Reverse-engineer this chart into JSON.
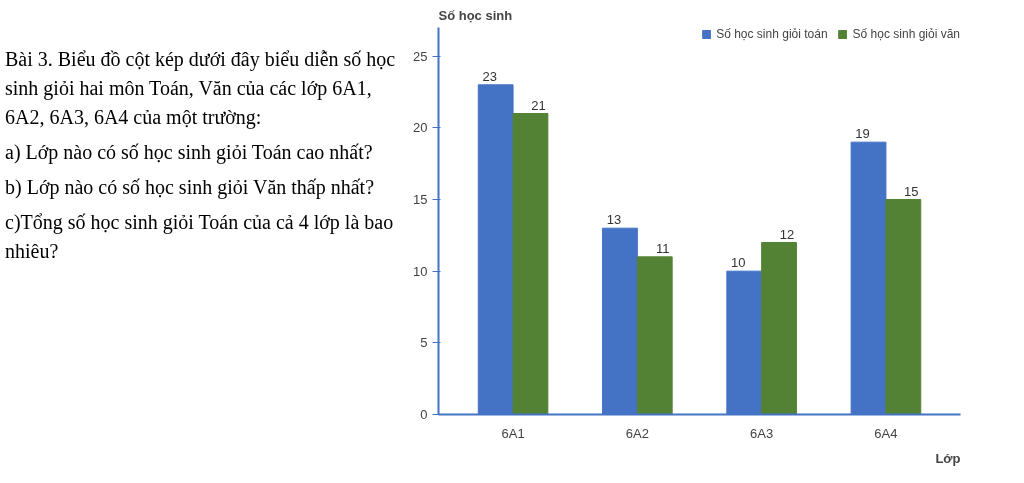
{
  "chart_data": {
    "type": "bar",
    "ylabel": "Số học sinh",
    "xlabel": "Lớp",
    "annotations": [
      "Bài 3. Biểu đồ cột kép dưới đây biểu diễn số học sinh giỏi hai môn Toán, Văn của các lớp 6A1, 6A2, 6A3, 6A4 của một trường:",
      "a) Lớp nào có số học sinh giỏi Toán cao nhất?",
      "b) Lớp nào có số học sinh giỏi Văn thấp nhất?",
      "c)Tổng số học sinh giỏi Toán của cả 4 lớp là bao nhiêu?"
    ],
    "categories": [
      "6A1",
      "6A2",
      "6A3",
      "6A4"
    ],
    "series": [
      {
        "name": "Số học sinh giỏi toán",
        "color": "#4472c4",
        "values": [
          23,
          13,
          10,
          19
        ]
      },
      {
        "name": "Số học sinh giỏi văn",
        "color": "#548235",
        "values": [
          21,
          11,
          12,
          15
        ]
      }
    ],
    "ylim": [
      0,
      27
    ],
    "yticks": [
      0,
      5,
      10,
      15,
      20,
      25
    ],
    "data_labels": true,
    "legend": "top right",
    "grid": false
  }
}
